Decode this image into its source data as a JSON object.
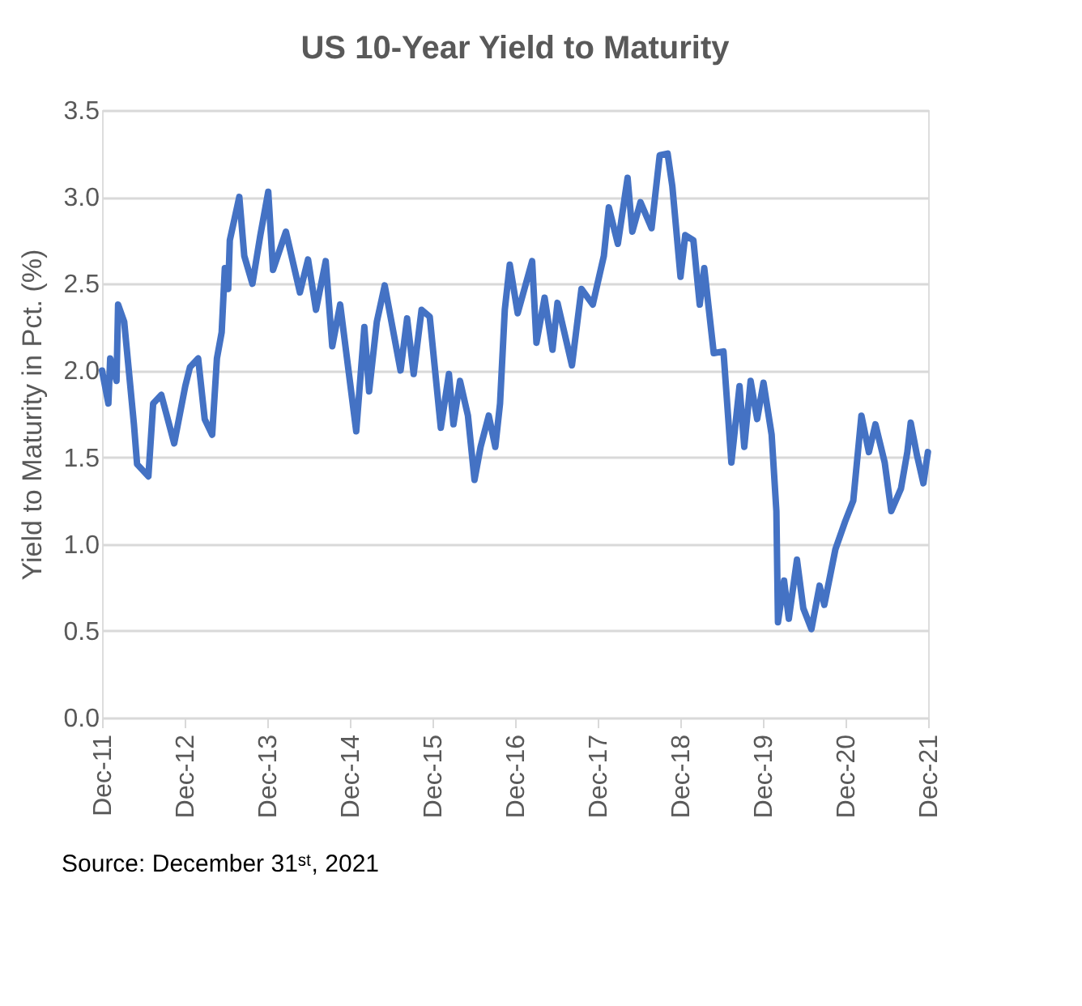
{
  "chart_data": {
    "type": "line",
    "title": "US 10-Year Yield to Maturity",
    "ylabel": "Yield to Maturity in Pct. (%)",
    "x": [
      "2011-12-01",
      "2011-12-29",
      "2012-01-06",
      "2012-02-03",
      "2012-02-10",
      "2012-03-08",
      "2012-04-20",
      "2012-05-04",
      "2012-06-23",
      "2012-07-14",
      "2012-08-19",
      "2012-10-15",
      "2012-12-03",
      "2012-12-24",
      "2013-01-29",
      "2013-02-27",
      "2013-04-01",
      "2013-04-22",
      "2013-05-13",
      "2013-05-27",
      "2013-06-11",
      "2013-06-18",
      "2013-07-30",
      "2013-08-21",
      "2013-09-26",
      "2013-10-31",
      "2013-12-05",
      "2013-12-26",
      "2014-02-21",
      "2014-04-24",
      "2014-05-30",
      "2014-07-04",
      "2014-08-16",
      "2014-09-14",
      "2014-10-19",
      "2014-12-29",
      "2015-02-03",
      "2015-02-24",
      "2015-03-30",
      "2015-05-04",
      "2015-07-13",
      "2015-08-11",
      "2015-09-09",
      "2015-10-14",
      "2015-11-19",
      "2016-01-07",
      "2016-02-12",
      "2016-03-03",
      "2016-04-01",
      "2016-05-06",
      "2016-06-04",
      "2016-07-01",
      "2016-08-06",
      "2016-09-04",
      "2016-09-25",
      "2016-10-16",
      "2016-11-07",
      "2016-12-12",
      "2017-02-14",
      "2017-03-05",
      "2017-04-10",
      "2017-05-15",
      "2017-06-06",
      "2017-08-09",
      "2017-09-20",
      "2017-11-09",
      "2017-12-28",
      "2018-01-19",
      "2018-02-28",
      "2018-04-12",
      "2018-05-03",
      "2018-06-08",
      "2018-07-27",
      "2018-09-01",
      "2018-10-06",
      "2018-10-27",
      "2018-12-02",
      "2018-12-23",
      "2019-01-28",
      "2019-02-25",
      "2019-03-17",
      "2019-04-28",
      "2019-06-10",
      "2019-07-15",
      "2019-08-20",
      "2019-09-10",
      "2019-10-08",
      "2019-11-06",
      "2019-12-04",
      "2020-01-09",
      "2020-01-30",
      "2020-02-06",
      "2020-03-04",
      "2020-03-25",
      "2020-04-30",
      "2020-05-28",
      "2020-07-03",
      "2020-08-08",
      "2020-08-29",
      "2020-10-17",
      "2020-11-29",
      "2021-01-04",
      "2021-02-09",
      "2021-03-14",
      "2021-04-12",
      "2021-05-23",
      "2021-06-21",
      "2021-08-03",
      "2021-08-31",
      "2021-09-15",
      "2021-10-13",
      "2021-11-10",
      "2021-11-30"
    ],
    "series": [
      {
        "color": "#4472c4",
        "values": [
          2.0,
          1.81,
          2.07,
          1.94,
          2.38,
          2.28,
          1.69,
          1.46,
          1.39,
          1.81,
          1.86,
          1.58,
          1.91,
          2.02,
          2.07,
          1.72,
          1.63,
          2.07,
          2.22,
          2.59,
          2.47,
          2.75,
          3.0,
          2.66,
          2.5,
          2.78,
          3.03,
          2.58,
          2.8,
          2.45,
          2.64,
          2.35,
          2.63,
          2.14,
          2.38,
          1.65,
          2.25,
          1.88,
          2.28,
          2.49,
          2.0,
          2.3,
          1.98,
          2.35,
          2.31,
          1.67,
          1.98,
          1.69,
          1.94,
          1.74,
          1.37,
          1.56,
          1.74,
          1.56,
          1.81,
          2.35,
          2.61,
          2.33,
          2.63,
          2.16,
          2.42,
          2.12,
          2.39,
          2.03,
          2.47,
          2.38,
          2.66,
          2.94,
          2.73,
          3.11,
          2.8,
          2.97,
          2.82,
          3.24,
          3.25,
          3.06,
          2.54,
          2.78,
          2.75,
          2.38,
          2.59,
          2.1,
          2.11,
          1.47,
          1.91,
          1.56,
          1.94,
          1.72,
          1.93,
          1.63,
          1.19,
          0.55,
          0.79,
          0.57,
          0.91,
          0.63,
          0.51,
          0.76,
          0.65,
          0.97,
          1.13,
          1.25,
          1.74,
          1.53,
          1.69,
          1.47,
          1.19,
          1.32,
          1.53,
          1.7,
          1.51,
          1.35,
          1.53
        ]
      }
    ],
    "xlim": [
      "2011-12-01",
      "2021-12-01"
    ],
    "xticks": [
      {
        "value": "2011-12-01",
        "label": "Dec-11"
      },
      {
        "value": "2012-12-01",
        "label": "Dec-12"
      },
      {
        "value": "2013-12-01",
        "label": "Dec-13"
      },
      {
        "value": "2014-12-01",
        "label": "Dec-14"
      },
      {
        "value": "2015-12-01",
        "label": "Dec-15"
      },
      {
        "value": "2016-12-01",
        "label": "Dec-16"
      },
      {
        "value": "2017-12-01",
        "label": "Dec-17"
      },
      {
        "value": "2018-12-01",
        "label": "Dec-18"
      },
      {
        "value": "2019-12-01",
        "label": "Dec-19"
      },
      {
        "value": "2020-12-01",
        "label": "Dec-20"
      },
      {
        "value": "2021-12-01",
        "label": "Dec-21"
      }
    ],
    "ylim": [
      0,
      3.5
    ],
    "yticks": [
      {
        "value": 0,
        "label": "0.0"
      },
      {
        "value": 0.5,
        "label": "0.5"
      },
      {
        "value": 1,
        "label": "1.0"
      },
      {
        "value": 1.5,
        "label": "1.5"
      },
      {
        "value": 2,
        "label": "2.0"
      },
      {
        "value": 2.5,
        "label": "2.5"
      },
      {
        "value": 3,
        "label": "3.0"
      },
      {
        "value": 3.5,
        "label": "3.5"
      }
    ],
    "grid": "y",
    "marker": "none",
    "line_style": "solid",
    "annotations": [
      "Source: December 31ˢᵗ, 2021"
    ]
  }
}
